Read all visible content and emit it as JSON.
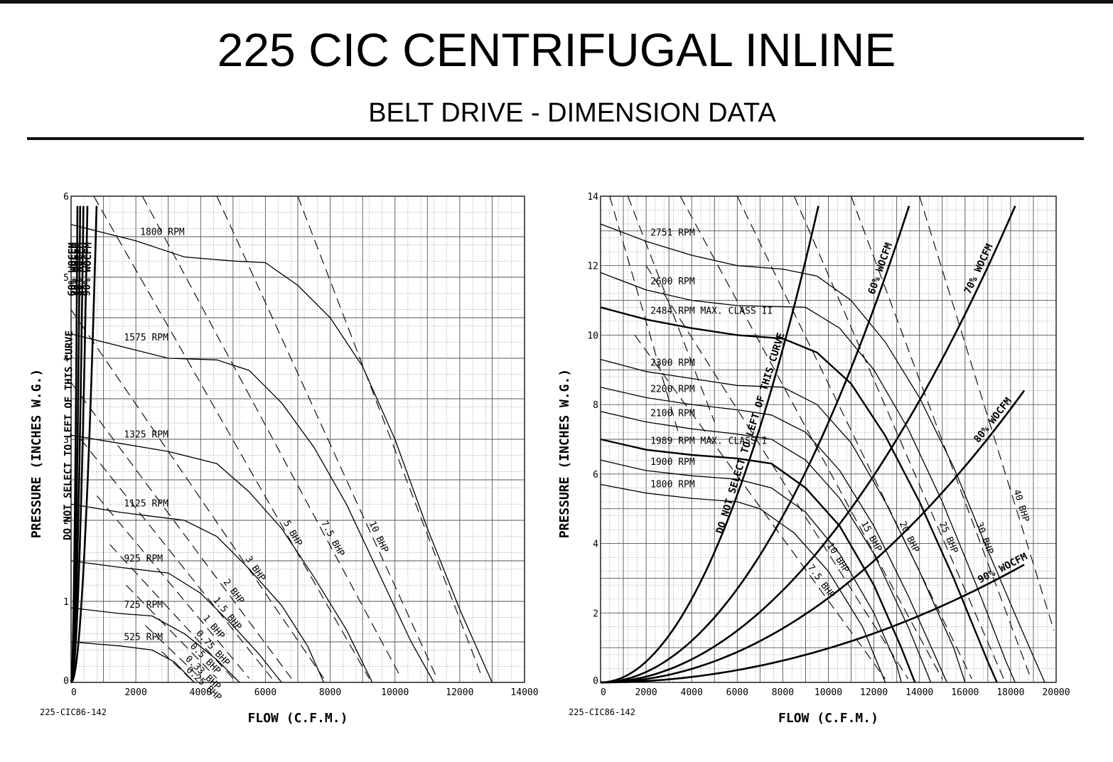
{
  "page": {
    "title": "225 CIC CENTRIFUGAL INLINE",
    "subtitle": "BELT DRIVE - DIMENSION DATA"
  },
  "chart_data": [
    {
      "type": "line",
      "xlabel": "FLOW (C.F.M.)",
      "ylabel": "PRESSURE (INCHES W.G.)",
      "code": "225-CIC86-142",
      "xlim": [
        0,
        14000
      ],
      "ylim": [
        0,
        6
      ],
      "x_ticks": [
        0,
        2000,
        4000,
        6000,
        8000,
        10000,
        12000,
        14000
      ],
      "y_ticks": [
        0,
        1,
        2,
        3,
        4,
        5,
        6
      ],
      "grid": true,
      "rpm_curves": [
        {
          "name": "1800 RPM",
          "points": [
            [
              0,
              5.65
            ],
            [
              2000,
              5.45
            ],
            [
              3500,
              5.25
            ],
            [
              5000,
              5.2
            ],
            [
              6000,
              5.18
            ],
            [
              7000,
              4.9
            ],
            [
              8000,
              4.5
            ],
            [
              9000,
              3.9
            ],
            [
              10000,
              3.0
            ],
            [
              11000,
              1.9
            ],
            [
              12000,
              0.9
            ],
            [
              13000,
              0.0
            ]
          ]
        },
        {
          "name": "1575 RPM",
          "points": [
            [
              0,
              4.3
            ],
            [
              1500,
              4.15
            ],
            [
              3000,
              4.0
            ],
            [
              4500,
              3.98
            ],
            [
              5500,
              3.85
            ],
            [
              6500,
              3.45
            ],
            [
              7500,
              2.9
            ],
            [
              8500,
              2.2
            ],
            [
              9500,
              1.35
            ],
            [
              10500,
              0.5
            ],
            [
              11200,
              0.0
            ]
          ]
        },
        {
          "name": "1325 RPM",
          "points": [
            [
              0,
              3.05
            ],
            [
              1500,
              2.95
            ],
            [
              3000,
              2.85
            ],
            [
              4500,
              2.7
            ],
            [
              5500,
              2.35
            ],
            [
              6500,
              1.9
            ],
            [
              7500,
              1.3
            ],
            [
              8500,
              0.65
            ],
            [
              9300,
              0.0
            ]
          ]
        },
        {
          "name": "1125 RPM",
          "points": [
            [
              0,
              2.2
            ],
            [
              1500,
              2.1
            ],
            [
              2500,
              2.05
            ],
            [
              3500,
              2.0
            ],
            [
              4500,
              1.8
            ],
            [
              5500,
              1.4
            ],
            [
              6500,
              0.95
            ],
            [
              7300,
              0.45
            ],
            [
              7800,
              0.0
            ]
          ]
        },
        {
          "name": "925 RPM",
          "points": [
            [
              0,
              1.5
            ],
            [
              1500,
              1.42
            ],
            [
              3000,
              1.35
            ],
            [
              4000,
              1.1
            ],
            [
              5000,
              0.7
            ],
            [
              5800,
              0.35
            ],
            [
              6500,
              0.0
            ]
          ]
        },
        {
          "name": "725 RPM",
          "points": [
            [
              0,
              0.92
            ],
            [
              1500,
              0.85
            ],
            [
              2500,
              0.82
            ],
            [
              3500,
              0.6
            ],
            [
              4500,
              0.28
            ],
            [
              5200,
              0.0
            ]
          ]
        },
        {
          "name": "525 RPM",
          "points": [
            [
              0,
              0.5
            ],
            [
              1500,
              0.45
            ],
            [
              2500,
              0.4
            ],
            [
              3200,
              0.25
            ],
            [
              3800,
              0.0
            ]
          ]
        }
      ],
      "bhp_lines": [
        {
          "name": "0.25 BHP",
          "points": [
            [
              2800,
              0.38
            ],
            [
              3800,
              0.0
            ]
          ]
        },
        {
          "name": "0.33 BHP",
          "points": [
            [
              2300,
              0.7
            ],
            [
              4000,
              0.05
            ]
          ]
        },
        {
          "name": "0.5 BHP",
          "points": [
            [
              1700,
              1.2
            ],
            [
              4500,
              0.05
            ]
          ]
        },
        {
          "name": "0.75 BHP",
          "points": [
            [
              1200,
              1.7
            ],
            [
              5000,
              0.05
            ]
          ]
        },
        {
          "name": "1 BHP",
          "points": [
            [
              800,
              2.3
            ],
            [
              5500,
              0.05
            ]
          ]
        },
        {
          "name": "1.5 BHP",
          "points": [
            [
              300,
              3.0
            ],
            [
              6200,
              0.05
            ]
          ]
        },
        {
          "name": "2 BHP",
          "points": [
            [
              0,
              3.7
            ],
            [
              6800,
              0.05
            ]
          ]
        },
        {
          "name": "3 BHP",
          "points": [
            [
              0,
              4.6
            ],
            [
              7800,
              0.05
            ]
          ]
        },
        {
          "name": "5 BHP",
          "points": [
            [
              700,
              6.0
            ],
            [
              9200,
              0.05
            ]
          ]
        },
        {
          "name": "7.5 BHP",
          "points": [
            [
              2200,
              6.0
            ],
            [
              10200,
              0.05
            ]
          ]
        },
        {
          "name": "10 BHP",
          "points": [
            [
              4500,
              6.0
            ],
            [
              11300,
              0.05
            ]
          ]
        },
        {
          "name": "",
          "points": [
            [
              7000,
              6.0
            ],
            [
              12700,
              0.05
            ]
          ]
        }
      ],
      "system_curves": [
        {
          "name": "DO NOT SELECT TO LEFT OF THIS CURVE",
          "k": 0.0001513
        },
        {
          "name": "60% WOCFM",
          "k": 7.46e-05
        },
        {
          "name": "70% WOCFM",
          "k": 4.06e-05
        },
        {
          "name": "80% WOCFM",
          "k": 2.31e-05
        },
        {
          "name": "90% WOCFM",
          "k": 9.5e-06
        }
      ]
    },
    {
      "type": "line",
      "xlabel": "FLOW (C.F.M.)",
      "ylabel": "PRESSURE (INCHES W.G.)",
      "code": "225-CIC86-142",
      "xlim": [
        0,
        20000
      ],
      "ylim": [
        0,
        14
      ],
      "x_ticks": [
        0,
        2000,
        4000,
        6000,
        8000,
        10000,
        12000,
        14000,
        16000,
        18000,
        20000
      ],
      "y_ticks": [
        0,
        2,
        4,
        6,
        8,
        10,
        12,
        14
      ],
      "grid": true,
      "rpm_curves": [
        {
          "name": "2751 RPM",
          "points": [
            [
              0,
              13.2
            ],
            [
              2000,
              12.7
            ],
            [
              4000,
              12.3
            ],
            [
              6000,
              12.0
            ],
            [
              8000,
              11.9
            ],
            [
              9500,
              11.7
            ],
            [
              11000,
              11.0
            ],
            [
              12500,
              9.8
            ],
            [
              14000,
              8.2
            ],
            [
              15500,
              6.2
            ],
            [
              17000,
              3.8
            ],
            [
              18500,
              1.5
            ],
            [
              19500,
              0.0
            ]
          ]
        },
        {
          "name": "2600 RPM",
          "points": [
            [
              0,
              11.8
            ],
            [
              2000,
              11.3
            ],
            [
              4000,
              11.0
            ],
            [
              6000,
              10.85
            ],
            [
              9000,
              10.8
            ],
            [
              10500,
              10.2
            ],
            [
              12000,
              9.0
            ],
            [
              13500,
              7.3
            ],
            [
              15000,
              5.2
            ],
            [
              16500,
              2.8
            ],
            [
              17800,
              0.6
            ],
            [
              18200,
              0.0
            ]
          ]
        },
        {
          "name": "2484 RPM MAX. CLASS II",
          "points": [
            [
              0,
              10.8
            ],
            [
              2000,
              10.45
            ],
            [
              4000,
              10.2
            ],
            [
              6000,
              10.0
            ],
            [
              8000,
              9.9
            ],
            [
              9500,
              9.5
            ],
            [
              11000,
              8.6
            ],
            [
              12500,
              7.1
            ],
            [
              14000,
              5.2
            ],
            [
              15500,
              3.0
            ],
            [
              17000,
              0.6
            ],
            [
              17400,
              0.0
            ]
          ]
        },
        {
          "name": "2300 RPM",
          "points": [
            [
              0,
              9.3
            ],
            [
              2000,
              8.95
            ],
            [
              4000,
              8.75
            ],
            [
              6000,
              8.55
            ],
            [
              8000,
              8.5
            ],
            [
              9500,
              8.0
            ],
            [
              11000,
              6.9
            ],
            [
              12500,
              5.2
            ],
            [
              14000,
              3.2
            ],
            [
              15500,
              1.0
            ],
            [
              16000,
              0.0
            ]
          ]
        },
        {
          "name": "2200 RPM",
          "points": [
            [
              0,
              8.5
            ],
            [
              2000,
              8.2
            ],
            [
              4000,
              8.0
            ],
            [
              6000,
              7.85
            ],
            [
              7500,
              7.7
            ],
            [
              9000,
              7.2
            ],
            [
              10500,
              6.1
            ],
            [
              12000,
              4.5
            ],
            [
              13500,
              2.5
            ],
            [
              15000,
              0.3
            ],
            [
              15200,
              0.0
            ]
          ]
        },
        {
          "name": "2100 RPM",
          "points": [
            [
              0,
              7.8
            ],
            [
              2000,
              7.5
            ],
            [
              4000,
              7.3
            ],
            [
              6000,
              7.15
            ],
            [
              7500,
              7.0
            ],
            [
              9000,
              6.4
            ],
            [
              10500,
              5.3
            ],
            [
              12000,
              3.7
            ],
            [
              13500,
              1.6
            ],
            [
              14500,
              0.0
            ]
          ]
        },
        {
          "name": "1989 RPM MAX. CLASS I",
          "points": [
            [
              0,
              7.0
            ],
            [
              2000,
              6.7
            ],
            [
              4000,
              6.55
            ],
            [
              6000,
              6.45
            ],
            [
              7500,
              6.3
            ],
            [
              9000,
              5.6
            ],
            [
              10500,
              4.5
            ],
            [
              12000,
              2.8
            ],
            [
              13200,
              1.0
            ],
            [
              13800,
              0.0
            ]
          ]
        },
        {
          "name": "1900 RPM",
          "points": [
            [
              0,
              6.4
            ],
            [
              2000,
              6.1
            ],
            [
              4000,
              5.95
            ],
            [
              6000,
              5.85
            ],
            [
              7500,
              5.6
            ],
            [
              9000,
              4.9
            ],
            [
              10500,
              3.7
            ],
            [
              12000,
              2.0
            ],
            [
              13000,
              0.5
            ],
            [
              13200,
              0.0
            ]
          ]
        },
        {
          "name": "1800 RPM",
          "points": [
            [
              0,
              5.7
            ],
            [
              2000,
              5.45
            ],
            [
              4000,
              5.3
            ],
            [
              6000,
              5.2
            ],
            [
              7000,
              5.0
            ],
            [
              8500,
              4.3
            ],
            [
              10000,
              3.2
            ],
            [
              11500,
              1.6
            ],
            [
              12500,
              0.0
            ]
          ]
        }
      ],
      "bhp_lines": [
        {
          "name": "7.5 BHP",
          "points": [
            [
              1500,
              10.0
            ],
            [
              12500,
              0.1
            ]
          ]
        },
        {
          "name": "10 BHP",
          "points": [
            [
              2000,
              12.0
            ],
            [
              13500,
              0.1
            ]
          ]
        },
        {
          "name": "15 BHP",
          "points": [
            [
              3500,
              14.0
            ],
            [
              15000,
              0.1
            ]
          ]
        },
        {
          "name": "20 BHP",
          "points": [
            [
              6000,
              14.0
            ],
            [
              16300,
              0.1
            ]
          ]
        },
        {
          "name": "25 BHP",
          "points": [
            [
              8500,
              14.0
            ],
            [
              17700,
              0.1
            ]
          ]
        },
        {
          "name": "30 BHP",
          "points": [
            [
              11000,
              14.0
            ],
            [
              18900,
              0.1
            ]
          ]
        },
        {
          "name": "40 BHP",
          "points": [
            [
              14000,
              14.0
            ],
            [
              19900,
              1.5
            ]
          ]
        },
        {
          "name": "",
          "points": [
            [
              400,
              14.0
            ],
            [
              3500,
              7.0
            ]
          ]
        },
        {
          "name": "",
          "points": [
            [
              1200,
              14.0
            ],
            [
              5000,
              7.5
            ]
          ]
        }
      ],
      "system_curves": [
        {
          "name": "DO NOT SELECT TO LEFT OF THIS CURVE",
          "k": 1.5e-07
        },
        {
          "name": "60% WOCFM",
          "k": 7.48e-08
        },
        {
          "name": "70% WOCFM",
          "k": 4.14e-08
        },
        {
          "name": "80% WOCFM",
          "k": 2.43e-08
        },
        {
          "name": "90% WOCFM",
          "k": 9.8e-09
        }
      ]
    }
  ]
}
